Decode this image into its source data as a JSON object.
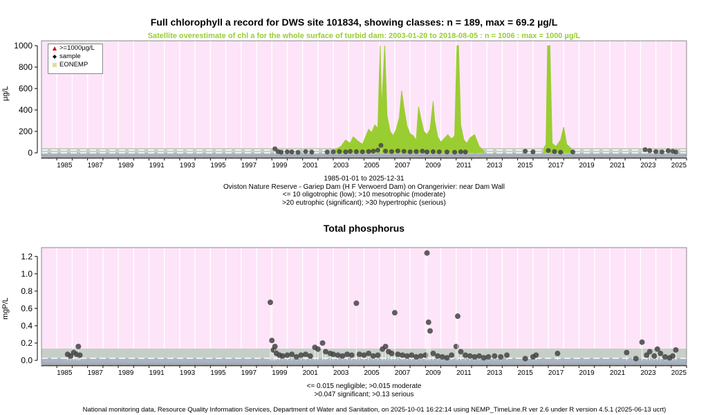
{
  "colors": {
    "plot_bg": "#fde4f8",
    "grid": "#ffffff",
    "satellite": "#9acd32",
    "class_band": "#c6cfc6",
    "bottom_band": "#a9b4c4",
    "sample_point": "#444444",
    "above_limit_marker": "#cc0000",
    "eonemp": "#dddd99",
    "subtitle_text": "#9acd32"
  },
  "top_chart": {
    "title": "Full chlorophyll a record for DWS site 101834, showing classes: n = 189, max = 69.2 µg/L",
    "subtitle": "Satellite overestimate of chl a for the whole surface of turbid dam: 2003-01-20 to 2018-08-05 : n = 1006 : max = 1000 µg/L",
    "ylabel": "µg/L",
    "legend": [
      {
        "label": ">=1000µg/L",
        "symbol": "triangle-up-icon"
      },
      {
        "label": "sample",
        "symbol": "diamond-icon"
      },
      {
        "label": "EONEMP",
        "symbol": "square-icon"
      }
    ],
    "caption_lines": [
      "1985-01-01 to 2025-12-31",
      "Oviston Nature Reserve - Gariep Dam (H F Verwoerd Dam) on Orangerivier: near Dam Wall",
      "<= 10 oligotrophic (low); >10 mesotrophic (moderate)",
      ">20 eutrophic (significant); >30 hypertrophic (serious)"
    ]
  },
  "bottom_chart": {
    "title": "Total phosphorus",
    "ylabel": "mgP/L",
    "caption_lines": [
      "<= 0.015 negligible; >0.015 moderate",
      ">0.047 significant; >0.13 serious"
    ]
  },
  "footer": "National monitoring data, Resource Quality Information Services, Department of Water and Sanitation, on 2025-10-01 16:22:14 using NEMP_TimeLine.R ver 2.6 under R version 4.5.1 (2025-06-13 ucrt)",
  "chart_data": [
    {
      "type": "scatter",
      "title": "Full chlorophyll a record for DWS site 101834, showing classes: n = 189, max = 69.2 µg/L",
      "ylabel": "µg/L",
      "xlim": [
        1984.0,
        2026.0
      ],
      "ylim": [
        0,
        1000
      ],
      "x_ticks": [
        1985,
        1987,
        1989,
        1991,
        1993,
        1995,
        1997,
        1999,
        2001,
        2003,
        2005,
        2007,
        2009,
        2011,
        2013,
        2015,
        2017,
        2019,
        2021,
        2023,
        2025
      ],
      "y_ticks": [
        0,
        200,
        400,
        600,
        800,
        1000
      ],
      "class_thresholds": [
        10,
        20,
        30
      ],
      "grid": true,
      "legend_position": "top-left",
      "series": [
        {
          "name": "sample",
          "points": [
            [
              1999.2,
              38
            ],
            [
              1999.4,
              12
            ],
            [
              1999.6,
              6
            ],
            [
              2000.0,
              10
            ],
            [
              2000.3,
              8
            ],
            [
              2000.7,
              5
            ],
            [
              2001.2,
              12
            ],
            [
              2001.6,
              7
            ],
            [
              2002.6,
              8
            ],
            [
              2003.0,
              10
            ],
            [
              2003.4,
              12
            ],
            [
              2003.8,
              9
            ],
            [
              2004.1,
              14
            ],
            [
              2004.5,
              11
            ],
            [
              2004.9,
              10
            ],
            [
              2005.3,
              13
            ],
            [
              2005.6,
              16
            ],
            [
              2005.9,
              25
            ],
            [
              2006.1,
              69.2
            ],
            [
              2006.4,
              16
            ],
            [
              2006.8,
              12
            ],
            [
              2007.2,
              18
            ],
            [
              2007.6,
              14
            ],
            [
              2008.0,
              10
            ],
            [
              2008.4,
              12
            ],
            [
              2008.8,
              16
            ],
            [
              2009.1,
              9
            ],
            [
              2009.5,
              11
            ],
            [
              2009.9,
              10
            ],
            [
              2010.4,
              8
            ],
            [
              2010.9,
              6
            ],
            [
              2011.3,
              10
            ],
            [
              2011.6,
              8
            ],
            [
              2015.5,
              15
            ],
            [
              2016.0,
              9
            ],
            [
              2017.0,
              22
            ],
            [
              2017.4,
              12
            ],
            [
              2017.8,
              6
            ],
            [
              2018.6,
              8
            ],
            [
              2023.3,
              30
            ],
            [
              2023.6,
              22
            ],
            [
              2024.0,
              12
            ],
            [
              2024.4,
              9
            ],
            [
              2024.8,
              20
            ],
            [
              2025.1,
              15
            ],
            [
              2025.3,
              8
            ]
          ]
        },
        {
          "name": "Satellite",
          "points": [
            [
              2003.1,
              30
            ],
            [
              2003.5,
              60
            ],
            [
              2003.8,
              120
            ],
            [
              2004.1,
              90
            ],
            [
              2004.3,
              150
            ],
            [
              2004.6,
              110
            ],
            [
              2004.9,
              80
            ],
            [
              2005.1,
              150
            ],
            [
              2005.3,
              220
            ],
            [
              2005.5,
              190
            ],
            [
              2005.7,
              260
            ],
            [
              2005.9,
              230
            ],
            [
              2006.05,
              1000
            ],
            [
              2006.15,
              420
            ],
            [
              2006.35,
              1000
            ],
            [
              2006.5,
              350
            ],
            [
              2006.7,
              200
            ],
            [
              2006.9,
              160
            ],
            [
              2007.1,
              220
            ],
            [
              2007.3,
              330
            ],
            [
              2007.45,
              580
            ],
            [
              2007.6,
              420
            ],
            [
              2007.8,
              250
            ],
            [
              2008.0,
              180
            ],
            [
              2008.2,
              160
            ],
            [
              2008.4,
              120
            ],
            [
              2008.55,
              430
            ],
            [
              2008.7,
              320
            ],
            [
              2008.9,
              200
            ],
            [
              2009.1,
              170
            ],
            [
              2009.3,
              220
            ],
            [
              2009.5,
              480
            ],
            [
              2009.6,
              300
            ],
            [
              2009.8,
              150
            ],
            [
              2010.0,
              100
            ],
            [
              2010.2,
              130
            ],
            [
              2010.45,
              170
            ],
            [
              2010.7,
              130
            ],
            [
              2010.9,
              160
            ],
            [
              2011.05,
              1000
            ],
            [
              2011.15,
              1000
            ],
            [
              2011.3,
              260
            ],
            [
              2011.5,
              120
            ],
            [
              2011.7,
              90
            ],
            [
              2011.9,
              140
            ],
            [
              2012.2,
              170
            ],
            [
              2012.5,
              60
            ],
            [
              2012.8,
              20
            ],
            [
              2016.7,
              40
            ],
            [
              2016.85,
              80
            ],
            [
              2016.95,
              1000
            ],
            [
              2017.1,
              1000
            ],
            [
              2017.25,
              90
            ],
            [
              2017.5,
              60
            ],
            [
              2017.8,
              120
            ],
            [
              2018.0,
              240
            ],
            [
              2018.2,
              80
            ],
            [
              2018.5,
              40
            ]
          ]
        }
      ]
    },
    {
      "type": "scatter",
      "title": "Total phosphorus",
      "ylabel": "mgP/L",
      "xlim": [
        1984.0,
        2026.0
      ],
      "ylim": [
        0,
        1.25
      ],
      "x_ticks": [
        1985,
        1987,
        1989,
        1991,
        1993,
        1995,
        1997,
        1999,
        2001,
        2003,
        2005,
        2007,
        2009,
        2011,
        2013,
        2015,
        2017,
        2019,
        2021,
        2023,
        2025
      ],
      "y_ticks": [
        0.0,
        0.2,
        0.4,
        0.6,
        0.8,
        1.0,
        1.2
      ],
      "class_thresholds": [
        0.015,
        0.047,
        0.13
      ],
      "grid": true,
      "series": [
        {
          "name": "sample",
          "points": [
            [
              1985.7,
              0.07
            ],
            [
              1985.9,
              0.05
            ],
            [
              1986.1,
              0.09
            ],
            [
              1986.3,
              0.07
            ],
            [
              1986.4,
              0.16
            ],
            [
              1986.5,
              0.06
            ],
            [
              1998.9,
              0.67
            ],
            [
              1999.0,
              0.23
            ],
            [
              1999.1,
              0.12
            ],
            [
              1999.2,
              0.16
            ],
            [
              1999.3,
              0.08
            ],
            [
              1999.5,
              0.06
            ],
            [
              1999.7,
              0.05
            ],
            [
              2000.0,
              0.06
            ],
            [
              2000.3,
              0.07
            ],
            [
              2000.6,
              0.04
            ],
            [
              2000.9,
              0.06
            ],
            [
              2001.2,
              0.07
            ],
            [
              2001.5,
              0.05
            ],
            [
              2001.8,
              0.15
            ],
            [
              2002.0,
              0.13
            ],
            [
              2002.3,
              0.2
            ],
            [
              2002.5,
              0.1
            ],
            [
              2002.8,
              0.08
            ],
            [
              2003.0,
              0.07
            ],
            [
              2003.3,
              0.06
            ],
            [
              2003.6,
              0.05
            ],
            [
              2003.9,
              0.07
            ],
            [
              2004.2,
              0.06
            ],
            [
              2004.5,
              0.66
            ],
            [
              2004.7,
              0.07
            ],
            [
              2005.0,
              0.06
            ],
            [
              2005.3,
              0.08
            ],
            [
              2005.6,
              0.05
            ],
            [
              2005.9,
              0.06
            ],
            [
              2006.2,
              0.13
            ],
            [
              2006.4,
              0.16
            ],
            [
              2006.6,
              0.1
            ],
            [
              2006.8,
              0.08
            ],
            [
              2007.0,
              0.55
            ],
            [
              2007.2,
              0.07
            ],
            [
              2007.5,
              0.06
            ],
            [
              2007.8,
              0.05
            ],
            [
              2008.1,
              0.06
            ],
            [
              2008.4,
              0.04
            ],
            [
              2008.7,
              0.05
            ],
            [
              2009.0,
              0.06
            ],
            [
              2009.1,
              1.24
            ],
            [
              2009.2,
              0.44
            ],
            [
              2009.3,
              0.34
            ],
            [
              2009.5,
              0.08
            ],
            [
              2009.8,
              0.05
            ],
            [
              2010.1,
              0.04
            ],
            [
              2010.4,
              0.03
            ],
            [
              2010.7,
              0.06
            ],
            [
              2011.0,
              0.16
            ],
            [
              2011.1,
              0.51
            ],
            [
              2011.3,
              0.1
            ],
            [
              2011.6,
              0.06
            ],
            [
              2011.9,
              0.05
            ],
            [
              2012.2,
              0.04
            ],
            [
              2012.5,
              0.05
            ],
            [
              2012.8,
              0.03
            ],
            [
              2013.1,
              0.04
            ],
            [
              2013.5,
              0.05
            ],
            [
              2013.9,
              0.04
            ],
            [
              2014.3,
              0.06
            ],
            [
              2015.5,
              0.02
            ],
            [
              2016.0,
              0.04
            ],
            [
              2016.2,
              0.06
            ],
            [
              2017.6,
              0.08
            ],
            [
              2022.1,
              0.09
            ],
            [
              2022.7,
              0.02
            ],
            [
              2023.1,
              0.21
            ],
            [
              2023.4,
              0.06
            ],
            [
              2023.6,
              0.1
            ],
            [
              2023.9,
              0.05
            ],
            [
              2024.1,
              0.13
            ],
            [
              2024.3,
              0.08
            ],
            [
              2024.6,
              0.04
            ],
            [
              2024.9,
              0.03
            ],
            [
              2025.1,
              0.05
            ],
            [
              2025.3,
              0.12
            ]
          ]
        }
      ]
    }
  ]
}
